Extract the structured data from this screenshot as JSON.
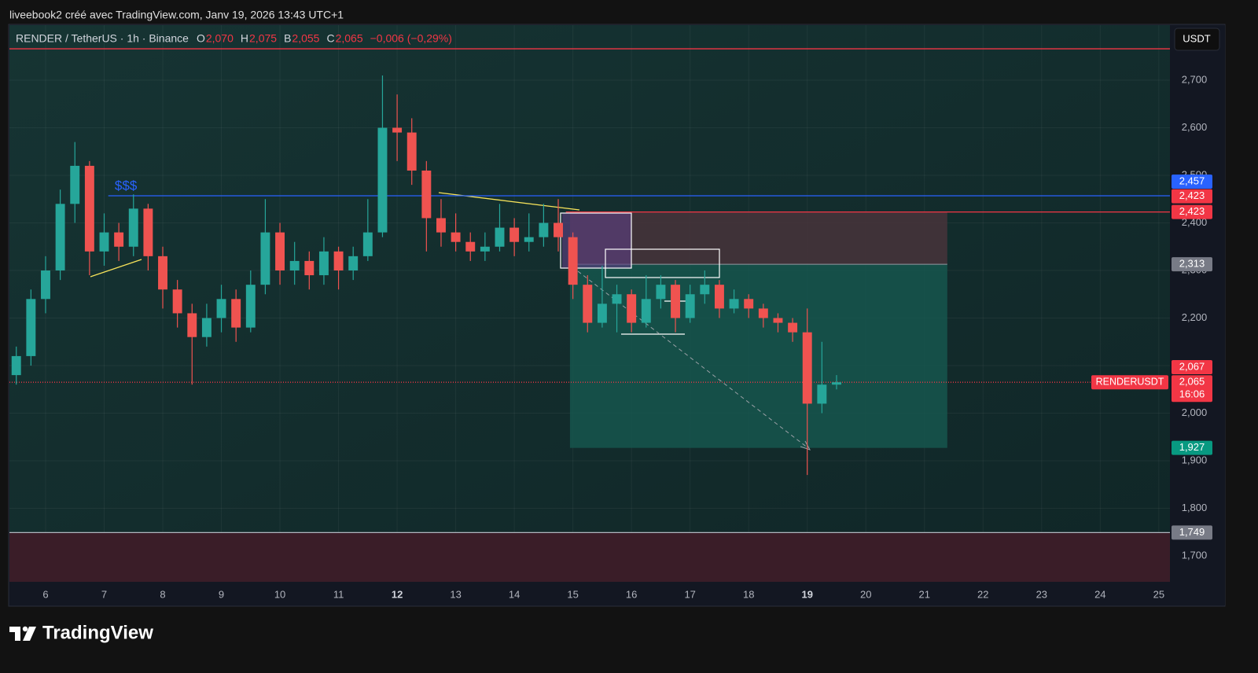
{
  "page": {
    "watermark": "liveebook2 créé avec TradingView.com, Janv 19, 2026 13:43 UTC+1",
    "brand": "TradingView",
    "currency_button": "USDT"
  },
  "chart_data": {
    "type": "candlestick",
    "title": "RENDER / TetherUS · 1h · Binance",
    "ohlc_legend": [
      {
        "key": "O",
        "value": "2,070"
      },
      {
        "key": "H",
        "value": "2,075"
      },
      {
        "key": "B",
        "value": "2,055"
      },
      {
        "key": "C",
        "value": "2,065"
      }
    ],
    "change": "−0,006 (−0,29%)",
    "symbol_label": "RENDERUSDT",
    "up_color": "#26a69a",
    "down_color": "#ef5350",
    "x": [
      5.5,
      5.75,
      6,
      6.25,
      6.5,
      6.75,
      7,
      7.25,
      7.5,
      7.75,
      8,
      8.25,
      8.5,
      8.75,
      9,
      9.25,
      9.5,
      9.75,
      10,
      10.25,
      10.5,
      10.75,
      11,
      11.25,
      11.5,
      11.75,
      12,
      12.25,
      12.5,
      12.75,
      13,
      13.25,
      13.5,
      13.75,
      14,
      14.25,
      14.5,
      14.75,
      15,
      15.25,
      15.5,
      15.75,
      16,
      16.25,
      16.5,
      16.75,
      17,
      17.25,
      17.5,
      17.75,
      18,
      18.25,
      18.5,
      18.75,
      19,
      19.25,
      19.5
    ],
    "open": [
      2.08,
      2.12,
      2.24,
      2.3,
      2.44,
      2.52,
      2.34,
      2.38,
      2.35,
      2.43,
      2.33,
      2.26,
      2.21,
      2.16,
      2.2,
      2.24,
      2.18,
      2.27,
      2.38,
      2.3,
      2.32,
      2.29,
      2.34,
      2.3,
      2.33,
      2.38,
      2.6,
      2.59,
      2.51,
      2.41,
      2.38,
      2.36,
      2.34,
      2.35,
      2.39,
      2.36,
      2.37,
      2.4,
      2.37,
      2.27,
      2.19,
      2.23,
      2.25,
      2.19,
      2.24,
      2.27,
      2.2,
      2.25,
      2.27,
      2.22,
      2.24,
      2.22,
      2.2,
      2.19,
      2.17,
      2.02,
      2.06
    ],
    "high": [
      2.14,
      2.26,
      2.33,
      2.47,
      2.57,
      2.53,
      2.42,
      2.4,
      2.46,
      2.44,
      2.35,
      2.28,
      2.23,
      2.23,
      2.27,
      2.26,
      2.3,
      2.45,
      2.4,
      2.36,
      2.34,
      2.37,
      2.35,
      2.35,
      2.45,
      2.71,
      2.67,
      2.62,
      2.53,
      2.45,
      2.42,
      2.38,
      2.38,
      2.44,
      2.41,
      2.42,
      2.44,
      2.45,
      2.38,
      2.29,
      2.31,
      2.27,
      2.26,
      2.29,
      2.29,
      2.28,
      2.27,
      2.3,
      2.28,
      2.26,
      2.25,
      2.23,
      2.21,
      2.2,
      2.22,
      2.15,
      2.08
    ],
    "low": [
      2.06,
      2.1,
      2.21,
      2.28,
      2.4,
      2.29,
      2.31,
      2.32,
      2.33,
      2.3,
      2.22,
      2.18,
      2.06,
      2.14,
      2.17,
      2.15,
      2.17,
      2.25,
      2.27,
      2.27,
      2.26,
      2.27,
      2.26,
      2.28,
      2.32,
      2.37,
      2.53,
      2.48,
      2.34,
      2.35,
      2.34,
      2.32,
      2.32,
      2.34,
      2.33,
      2.34,
      2.35,
      2.34,
      2.24,
      2.17,
      2.18,
      2.17,
      2.17,
      2.18,
      2.22,
      2.17,
      2.19,
      2.23,
      2.2,
      2.21,
      2.2,
      2.18,
      2.17,
      2.15,
      1.87,
      2.0,
      2.05
    ],
    "close": [
      2.12,
      2.24,
      2.3,
      2.44,
      2.52,
      2.34,
      2.38,
      2.35,
      2.43,
      2.33,
      2.26,
      2.21,
      2.16,
      2.2,
      2.24,
      2.18,
      2.27,
      2.38,
      2.3,
      2.32,
      2.29,
      2.34,
      2.3,
      2.33,
      2.38,
      2.6,
      2.59,
      2.51,
      2.41,
      2.38,
      2.36,
      2.34,
      2.35,
      2.39,
      2.36,
      2.37,
      2.4,
      2.37,
      2.27,
      2.19,
      2.23,
      2.25,
      2.19,
      2.24,
      2.27,
      2.2,
      2.25,
      2.27,
      2.22,
      2.24,
      2.22,
      2.2,
      2.19,
      2.17,
      2.02,
      2.06,
      2.065
    ],
    "xlim": [
      5.383,
      25.19
    ],
    "xticks": [
      6,
      7,
      8,
      9,
      10,
      11,
      12,
      13,
      14,
      15,
      16,
      17,
      18,
      19,
      20,
      21,
      22,
      23,
      24,
      25
    ],
    "xticks_bold": [
      12,
      19
    ],
    "ylim": [
      1.6455,
      2.8157
    ],
    "yticks": [
      {
        "value": 1.7,
        "label": "1,700"
      },
      {
        "value": 1.8,
        "label": "1,800"
      },
      {
        "value": 1.9,
        "label": "1,900"
      },
      {
        "value": 2.0,
        "label": "2,000"
      },
      {
        "value": 2.1,
        "label": "2,100"
      },
      {
        "value": 2.2,
        "label": "2,200"
      },
      {
        "value": 2.3,
        "label": "2,300"
      },
      {
        "value": 2.4,
        "label": "2,400"
      },
      {
        "value": 2.5,
        "label": "2,500"
      },
      {
        "value": 2.6,
        "label": "2,600"
      },
      {
        "value": 2.7,
        "label": "2,700"
      }
    ],
    "grid": true,
    "levels": [
      {
        "value": 2.766,
        "color": "#f23645",
        "style": "solid"
      },
      {
        "value": 2.457,
        "color": "#2962ff",
        "style": "solid",
        "from": 7.07
      },
      {
        "value": 2.423,
        "color": "#f23645",
        "style": "solid",
        "from": 14.88
      },
      {
        "value": 2.065,
        "color": "#f23645",
        "style": "dotted"
      },
      {
        "value": 1.749,
        "color": "#b2b5be",
        "style": "solid"
      }
    ],
    "zone_below": {
      "value": 1.749,
      "color": "#3a1d28"
    },
    "position": {
      "entry": 2.313,
      "stop": 2.423,
      "target": 1.927,
      "x": [
        14.95,
        21.39
      ],
      "stop_color": "#45333a",
      "target_color": "#16564d"
    },
    "annotations": [
      {
        "text": "$$$",
        "x": 7.18,
        "y": 2.477,
        "color": "#2962ff"
      }
    ],
    "price_labels": [
      {
        "value": 2.457,
        "label": "2,457",
        "color": "#2962ff"
      },
      {
        "value": 2.423,
        "label": "2,423",
        "color": "#f23645"
      },
      {
        "value": 2.423,
        "label": "2,423",
        "color": "#f23645"
      },
      {
        "value": 2.313,
        "label": "2,313",
        "color": "#787b86"
      },
      {
        "value": 2.067,
        "label": "2,067",
        "color": "#f23645"
      },
      {
        "value": 2.065,
        "label": "2,065",
        "color": "#f23645",
        "countdown": "16:06"
      },
      {
        "value": 1.927,
        "label": "1,927",
        "color": "#089981"
      },
      {
        "value": 1.749,
        "label": "1,749",
        "color": "#787b86"
      }
    ]
  }
}
